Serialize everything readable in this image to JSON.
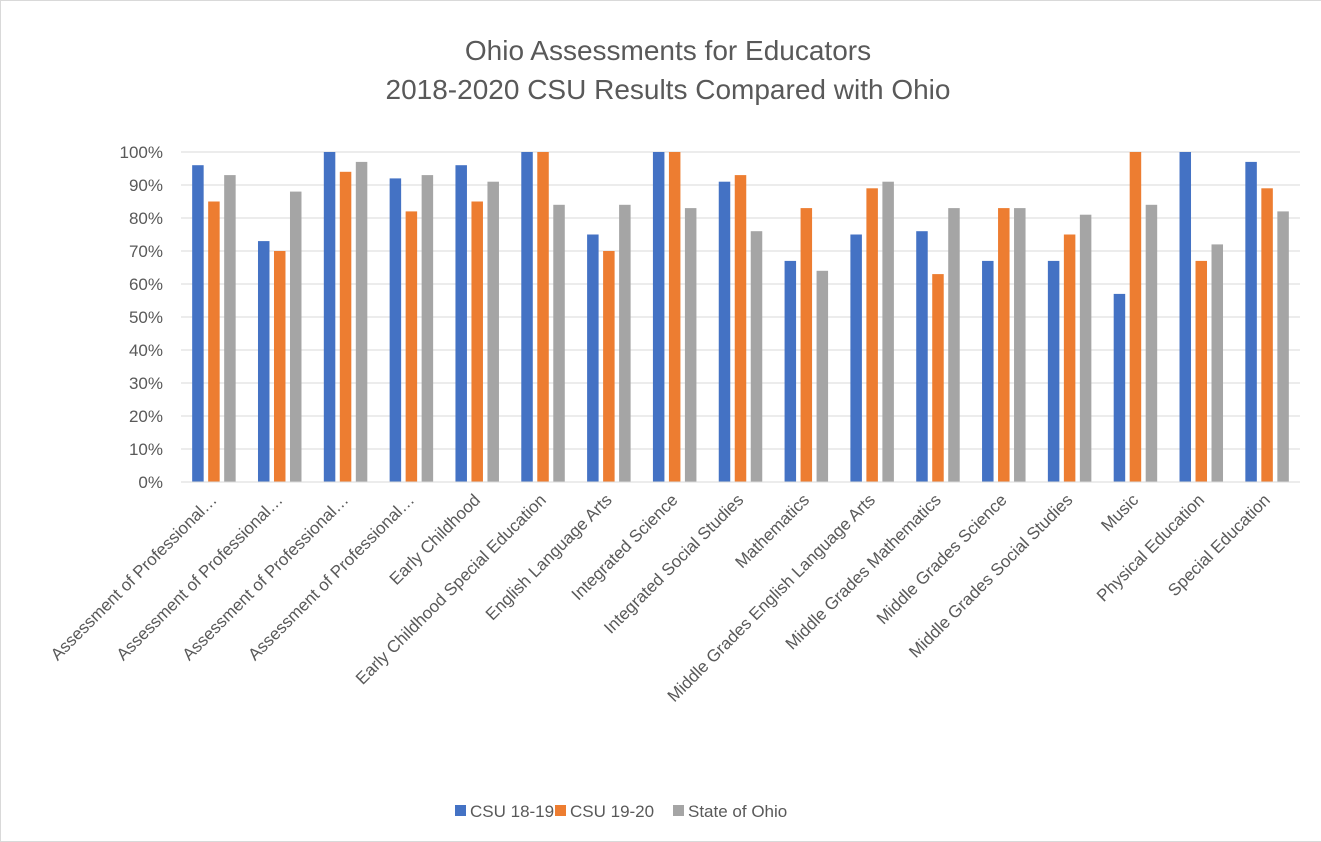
{
  "chart_data": {
    "type": "bar",
    "title_lines": [
      "Ohio Assessments for Educators",
      "2018-2020 CSU Results Compared with Ohio"
    ],
    "categories": [
      "Assessment of Professional…",
      "Assessment of Professional…",
      "Assessment of Professional…",
      "Assessment of Professional…",
      "Early Childhood",
      "Early Childhood Special Education",
      "English Language Arts",
      "Integrated Science",
      "Integrated Social Studies",
      "Mathematics",
      "Middle Grades English Language Arts",
      "Middle Grades Mathematics",
      "Middle Grades Science",
      "Middle Grades Social Studies",
      "Music",
      "Physical Education",
      "Special Education"
    ],
    "series": [
      {
        "name": "CSU 18-19",
        "color": "#4472c4",
        "values": [
          96,
          73,
          100,
          92,
          96,
          100,
          75,
          100,
          91,
          67,
          75,
          76,
          67,
          67,
          57,
          100,
          97
        ]
      },
      {
        "name": "CSU 19-20",
        "color": "#ed7d31",
        "values": [
          85,
          70,
          94,
          82,
          85,
          100,
          70,
          100,
          93,
          83,
          89,
          63,
          83,
          75,
          100,
          67,
          89
        ]
      },
      {
        "name": "State of Ohio",
        "color": "#a5a5a5",
        "values": [
          93,
          88,
          97,
          93,
          91,
          84,
          84,
          83,
          76,
          64,
          91,
          83,
          83,
          81,
          84,
          72,
          82
        ]
      }
    ],
    "ylim": [
      0,
      100
    ],
    "y_ticks": [
      0,
      10,
      20,
      30,
      40,
      50,
      60,
      70,
      80,
      90,
      100
    ],
    "y_tick_labels": [
      "0%",
      "10%",
      "20%",
      "30%",
      "40%",
      "50%",
      "60%",
      "70%",
      "80%",
      "90%",
      "100%"
    ],
    "xlabel": "",
    "ylabel": "",
    "grid": true,
    "legend_position": "bottom",
    "gridline_color": "#d9d9d9",
    "text_color": "#595959"
  }
}
